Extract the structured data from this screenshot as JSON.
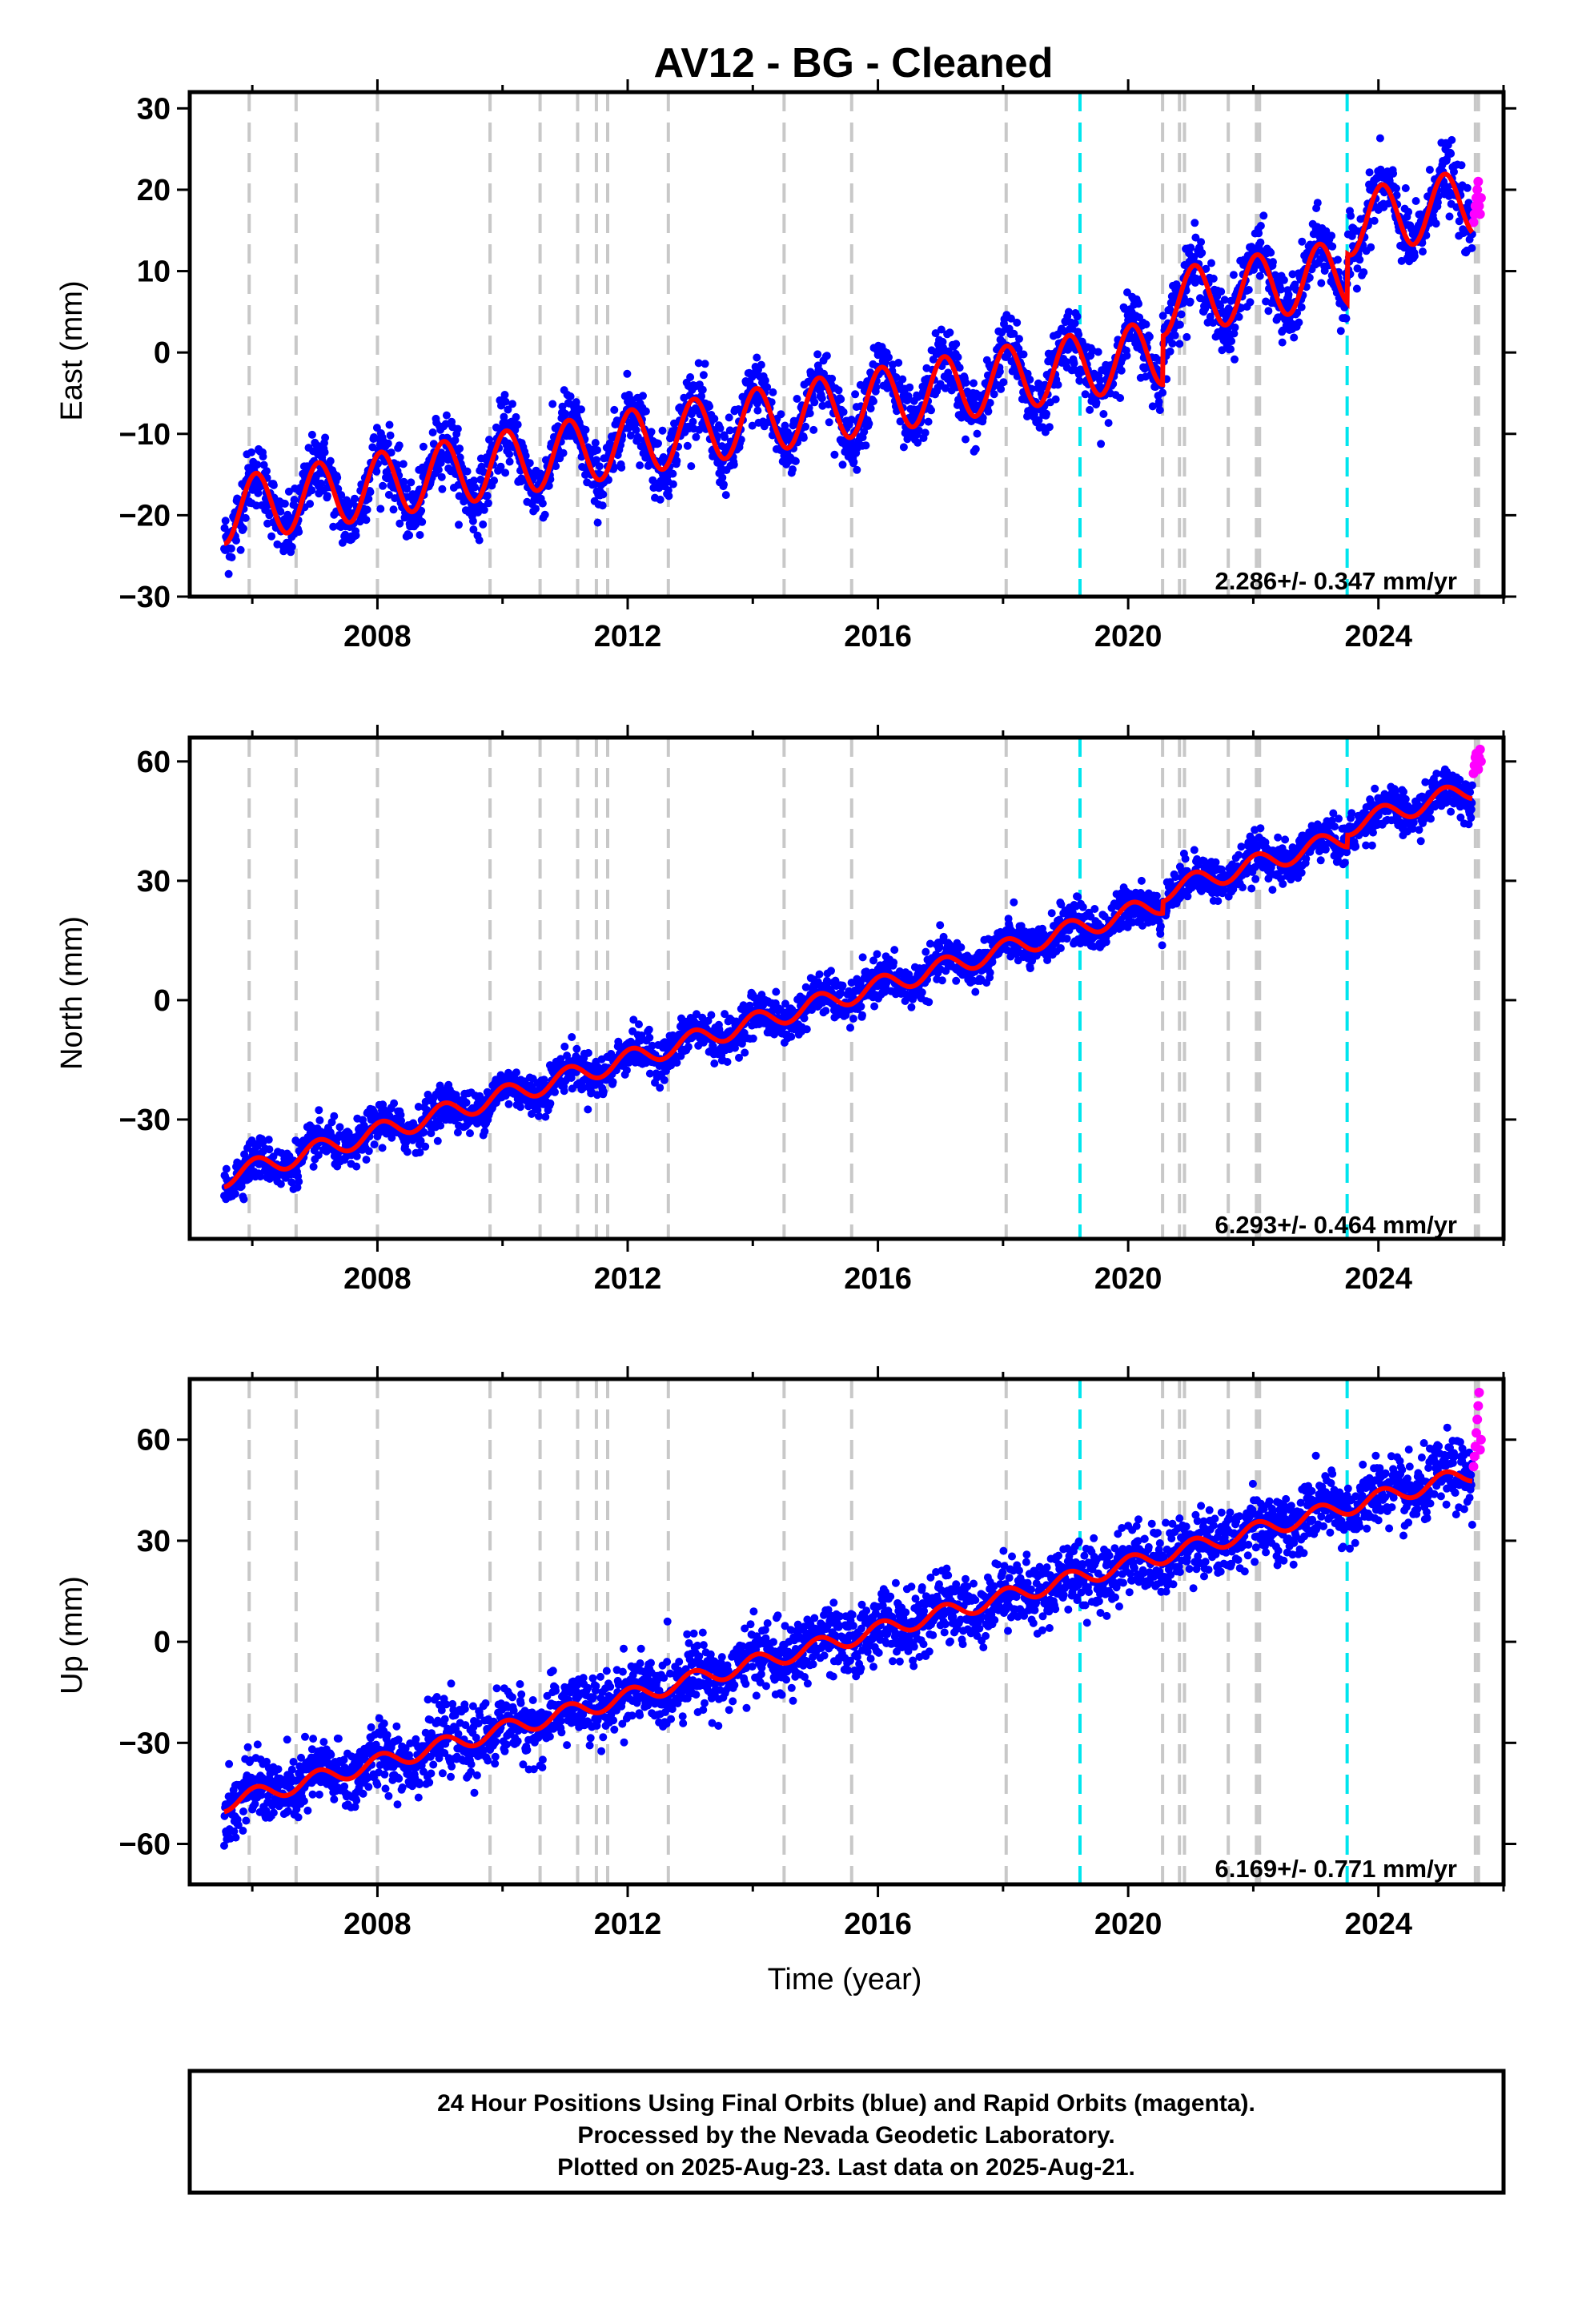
{
  "title": "AV12  - BG - Cleaned",
  "colors": {
    "final_orbits": "#0000ff",
    "rapid_orbits": "#ff00ff",
    "model": "#ff0000",
    "equipment_change": "#c8c8c8",
    "earthquake": "#00e5ee"
  },
  "x_axis": {
    "label": "Time (year)",
    "range": [
      2005.0,
      2026.0
    ],
    "ticks": [
      2008,
      2012,
      2016,
      2020,
      2024
    ],
    "tick_labels": [
      "2008",
      "2012",
      "2016",
      "2020",
      "2024"
    ],
    "minor_ticks": [
      2006,
      2010,
      2014,
      2018,
      2022,
      2026
    ]
  },
  "chart_data": [
    {
      "type": "scatter",
      "component": "east",
      "ylabel": "East (mm)",
      "ylim": [
        -30,
        32
      ],
      "yticks": [
        30,
        20,
        10,
        0,
        -10,
        -20,
        -30
      ],
      "ytick_labels": [
        "30",
        "20",
        "10",
        "0",
        "−10",
        "−20",
        "−30"
      ],
      "rate_label": "2.286+/- 0.347 mm/yr",
      "rate_mm_per_yr": 2.286,
      "rate_sigma": 0.347,
      "series": [
        {
          "name": "final orbits",
          "start": 2005.55,
          "end": 2025.5,
          "start_value": -19.5,
          "end_value": 18.5,
          "seasonal_amplitude": 4.0,
          "scatter": 2.0,
          "vertical_offsets": [
            {
              "x": 2020.55,
              "offset": 6.0
            },
            {
              "x": 2023.5,
              "offset": 6.0
            }
          ]
        },
        {
          "name": "rapid orbits",
          "start": 2025.52,
          "end": 2025.64,
          "values": [
            16,
            17,
            18,
            19,
            20,
            21,
            18,
            17,
            19
          ]
        }
      ]
    },
    {
      "type": "scatter",
      "component": "north",
      "ylabel": "North (mm)",
      "ylim": [
        -60,
        66
      ],
      "yticks": [
        60,
        30,
        0,
        -30
      ],
      "ytick_labels": [
        "60",
        "30",
        "0",
        "−30"
      ],
      "rate_label": "6.293+/- 0.464 mm/yr",
      "rate_mm_per_yr": 6.293,
      "rate_sigma": 0.464,
      "series": [
        {
          "name": "final orbits",
          "start": 2005.55,
          "end": 2025.5,
          "start_value": -44.5,
          "end_value": 53.0,
          "seasonal_amplitude": 2.5,
          "scatter": 2.6,
          "vertical_offsets": [
            {
              "x": 2020.55,
              "offset": 3.0
            },
            {
              "x": 2023.5,
              "offset": 3.0
            }
          ]
        },
        {
          "name": "rapid orbits",
          "start": 2025.52,
          "end": 2025.64,
          "values": [
            57,
            59,
            61,
            62,
            60,
            58,
            61,
            63,
            60
          ]
        }
      ]
    },
    {
      "type": "scatter",
      "component": "up",
      "ylabel": "Up (mm)",
      "ylim": [
        -72,
        78
      ],
      "yticks": [
        60,
        30,
        0,
        -30,
        -60
      ],
      "ytick_labels": [
        "60",
        "30",
        "0",
        "−30",
        "−60"
      ],
      "rate_label": "6.169+/- 0.771 mm/yr",
      "rate_mm_per_yr": 6.169,
      "rate_sigma": 0.771,
      "series": [
        {
          "name": "final orbits",
          "start": 2005.55,
          "end": 2025.5,
          "start_value": -48.0,
          "end_value": 50.0,
          "seasonal_amplitude": 2.5,
          "scatter": 5.0,
          "vertical_offsets": []
        },
        {
          "name": "rapid orbits",
          "start": 2025.52,
          "end": 2025.64,
          "values": [
            52,
            55,
            58,
            62,
            66,
            70,
            74,
            57,
            60
          ]
        }
      ]
    }
  ],
  "equipment_change_years": [
    2005.95,
    2006.7,
    2008.0,
    2009.8,
    2010.6,
    2011.2,
    2011.5,
    2011.68,
    2012.65,
    2014.5,
    2015.58,
    2018.05,
    2020.55,
    2020.82,
    2020.9,
    2021.6,
    2022.05,
    2022.1,
    2025.55,
    2025.6
  ],
  "earthquake_years": [
    2019.23,
    2023.5
  ],
  "footer": {
    "line1": "24 Hour Positions Using Final Orbits (blue) and Rapid Orbits (magenta).",
    "line2": "Processed by the Nevada Geodetic Laboratory.",
    "line3": "Plotted on 2025-Aug-23. Last data on 2025-Aug-21."
  }
}
